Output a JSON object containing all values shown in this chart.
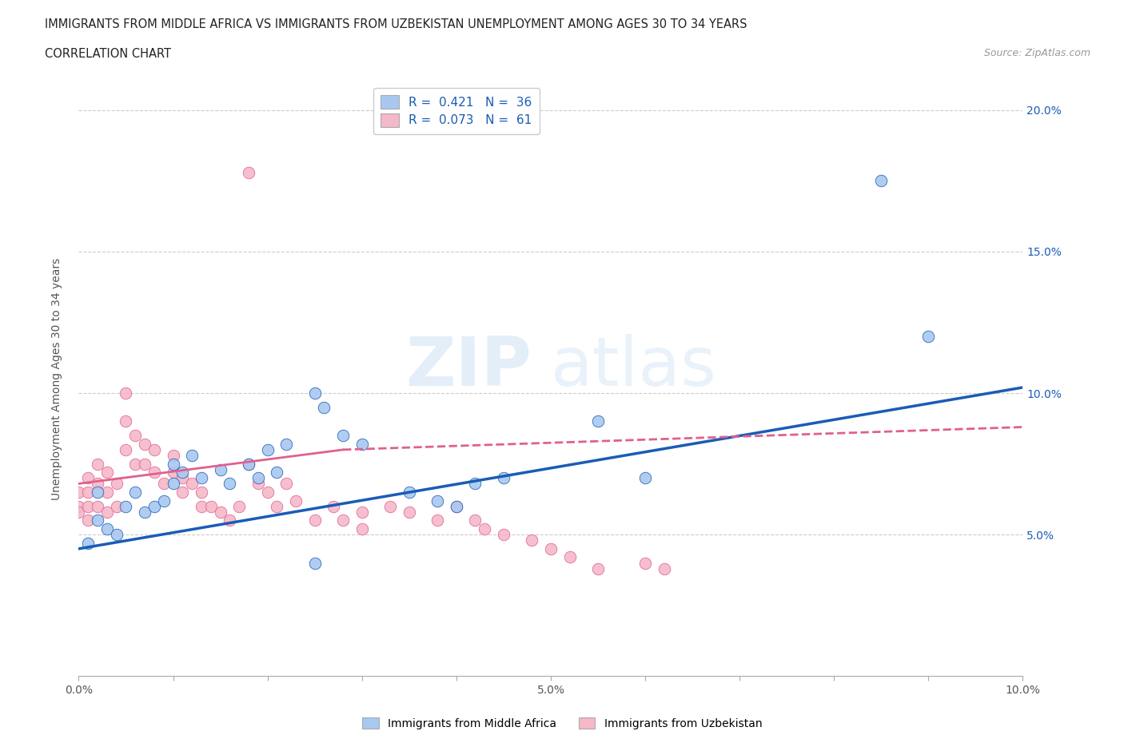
{
  "title_line1": "IMMIGRANTS FROM MIDDLE AFRICA VS IMMIGRANTS FROM UZBEKISTAN UNEMPLOYMENT AMONG AGES 30 TO 34 YEARS",
  "title_line2": "CORRELATION CHART",
  "source_text": "Source: ZipAtlas.com",
  "ylabel": "Unemployment Among Ages 30 to 34 years",
  "xlim": [
    0.0,
    0.1
  ],
  "ylim": [
    0.0,
    0.21
  ],
  "blue_color": "#a8c8f0",
  "pink_color": "#f5b8c8",
  "blue_line_color": "#1a5cb5",
  "pink_line_color": "#e06090",
  "R_blue": 0.421,
  "N_blue": 36,
  "R_pink": 0.073,
  "N_pink": 61,
  "watermark_zip": "ZIP",
  "watermark_atlas": "atlas",
  "legend_label_blue": "Immigrants from Middle Africa",
  "legend_label_pink": "Immigrants from Uzbekistan",
  "blue_x": [
    0.001,
    0.002,
    0.002,
    0.003,
    0.004,
    0.005,
    0.006,
    0.007,
    0.008,
    0.009,
    0.01,
    0.01,
    0.011,
    0.012,
    0.013,
    0.015,
    0.016,
    0.018,
    0.019,
    0.02,
    0.021,
    0.022,
    0.025,
    0.026,
    0.028,
    0.03,
    0.035,
    0.038,
    0.04,
    0.042,
    0.045,
    0.055,
    0.085,
    0.09,
    0.06,
    0.025
  ],
  "blue_y": [
    0.047,
    0.065,
    0.055,
    0.052,
    0.05,
    0.06,
    0.065,
    0.058,
    0.06,
    0.062,
    0.068,
    0.075,
    0.072,
    0.078,
    0.07,
    0.073,
    0.068,
    0.075,
    0.07,
    0.08,
    0.072,
    0.082,
    0.1,
    0.095,
    0.085,
    0.082,
    0.065,
    0.062,
    0.06,
    0.068,
    0.07,
    0.09,
    0.175,
    0.12,
    0.07,
    0.04
  ],
  "pink_x": [
    0.0,
    0.0,
    0.0,
    0.001,
    0.001,
    0.001,
    0.001,
    0.002,
    0.002,
    0.002,
    0.003,
    0.003,
    0.003,
    0.004,
    0.004,
    0.005,
    0.005,
    0.005,
    0.006,
    0.006,
    0.007,
    0.007,
    0.008,
    0.008,
    0.009,
    0.01,
    0.01,
    0.011,
    0.011,
    0.012,
    0.013,
    0.013,
    0.014,
    0.015,
    0.016,
    0.017,
    0.018,
    0.019,
    0.02,
    0.021,
    0.022,
    0.023,
    0.025,
    0.027,
    0.028,
    0.03,
    0.03,
    0.033,
    0.035,
    0.038,
    0.04,
    0.042,
    0.043,
    0.045,
    0.048,
    0.05,
    0.052,
    0.055,
    0.06,
    0.062,
    0.018
  ],
  "pink_y": [
    0.06,
    0.065,
    0.058,
    0.07,
    0.065,
    0.06,
    0.055,
    0.075,
    0.068,
    0.06,
    0.072,
    0.065,
    0.058,
    0.068,
    0.06,
    0.1,
    0.09,
    0.08,
    0.085,
    0.075,
    0.082,
    0.075,
    0.08,
    0.072,
    0.068,
    0.078,
    0.072,
    0.07,
    0.065,
    0.068,
    0.065,
    0.06,
    0.06,
    0.058,
    0.055,
    0.06,
    0.075,
    0.068,
    0.065,
    0.06,
    0.068,
    0.062,
    0.055,
    0.06,
    0.055,
    0.058,
    0.052,
    0.06,
    0.058,
    0.055,
    0.06,
    0.055,
    0.052,
    0.05,
    0.048,
    0.045,
    0.042,
    0.038,
    0.04,
    0.038,
    0.178
  ],
  "blue_trend": [
    0.0,
    0.1,
    0.045,
    0.102
  ],
  "pink_trend_solid": [
    0.0,
    0.028,
    0.068,
    0.08
  ],
  "pink_trend_dashed": [
    0.028,
    0.1,
    0.08,
    0.088
  ]
}
